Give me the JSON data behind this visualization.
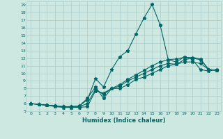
{
  "xlabel": "Humidex (Indice chaleur)",
  "ylabel": "",
  "xlim": [
    -0.5,
    23.5
  ],
  "ylim": [
    5,
    19.5
  ],
  "xticks": [
    0,
    1,
    2,
    3,
    4,
    5,
    6,
    7,
    8,
    9,
    10,
    11,
    12,
    13,
    14,
    15,
    16,
    17,
    18,
    19,
    20,
    21,
    22,
    23
  ],
  "yticks": [
    5,
    6,
    7,
    8,
    9,
    10,
    11,
    12,
    13,
    14,
    15,
    16,
    17,
    18,
    19
  ],
  "bg_color": "#cce8e0",
  "grid_color": "#aacccc",
  "line_color": "#006666",
  "line1_x": [
    0,
    1,
    2,
    3,
    4,
    5,
    6,
    7,
    8,
    9,
    10,
    11,
    12,
    13,
    14,
    15,
    16,
    17,
    18,
    19,
    20,
    21,
    22,
    23
  ],
  "line1_y": [
    6.0,
    5.9,
    5.8,
    5.7,
    5.6,
    5.6,
    5.7,
    6.5,
    9.3,
    8.2,
    10.5,
    12.2,
    13.0,
    15.2,
    17.3,
    19.1,
    16.4,
    11.8,
    11.5,
    12.2,
    11.8,
    10.5,
    10.3,
    10.5
  ],
  "line2_x": [
    0,
    1,
    2,
    3,
    4,
    5,
    6,
    7,
    8,
    9,
    10,
    11,
    12,
    13,
    14,
    15,
    16,
    17,
    18,
    19,
    20,
    21,
    22,
    23
  ],
  "line2_y": [
    6.0,
    5.9,
    5.8,
    5.7,
    5.6,
    5.5,
    5.5,
    5.6,
    7.7,
    7.4,
    8.0,
    8.5,
    9.2,
    9.8,
    10.4,
    11.0,
    11.5,
    11.8,
    11.9,
    12.1,
    12.1,
    11.9,
    10.5,
    10.4
  ],
  "line3_x": [
    0,
    1,
    2,
    3,
    4,
    5,
    6,
    7,
    8,
    9,
    10,
    11,
    12,
    13,
    14,
    15,
    16,
    17,
    18,
    19,
    20,
    21,
    22,
    23
  ],
  "line3_y": [
    6.0,
    5.9,
    5.8,
    5.6,
    5.5,
    5.5,
    5.6,
    6.0,
    7.9,
    7.2,
    8.0,
    8.0,
    8.5,
    9.2,
    9.5,
    10.0,
    10.5,
    11.0,
    11.2,
    11.5,
    11.5,
    11.3,
    10.5,
    10.4
  ],
  "line4_x": [
    0,
    1,
    2,
    3,
    4,
    5,
    6,
    7,
    8,
    9,
    10,
    11,
    12,
    13,
    14,
    15,
    16,
    17,
    18,
    19,
    20,
    21,
    22,
    23
  ],
  "line4_y": [
    6.0,
    5.9,
    5.8,
    5.7,
    5.6,
    5.6,
    5.7,
    6.7,
    8.2,
    6.7,
    8.0,
    8.3,
    9.0,
    9.5,
    10.0,
    10.5,
    11.0,
    11.3,
    11.2,
    11.8,
    12.0,
    11.8,
    10.5,
    10.4
  ]
}
